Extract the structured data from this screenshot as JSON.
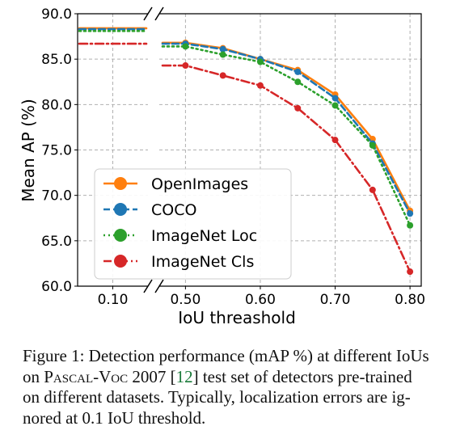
{
  "chart_data": {
    "type": "line",
    "ylabel": "Mean AP (%)",
    "xlabel": "IoU threashold",
    "ylim": [
      60,
      90
    ],
    "yticks": [
      "60.0",
      "65.0",
      "70.0",
      "75.0",
      "80.0",
      "85.0",
      "90.0"
    ],
    "ytick_values": [
      60,
      65,
      70,
      75,
      80,
      85,
      90
    ],
    "x_left_segment": {
      "ticks": [
        "0.10"
      ],
      "tick_values": [
        0.1
      ],
      "xlim": [
        0.05,
        0.15
      ]
    },
    "x_right_segment": {
      "ticks": [
        "0.50",
        "0.60",
        "0.70",
        "0.80"
      ],
      "tick_values": [
        0.5,
        0.6,
        0.7,
        0.8
      ],
      "xlim": [
        0.465,
        0.815
      ]
    },
    "grid": true,
    "broken_x_axis": true,
    "legend_position": "lower-left",
    "series": [
      {
        "name": "OpenImages",
        "color": "#ff7f0e",
        "linestyle": "solid",
        "left": {
          "x": [
            0.1
          ],
          "y": [
            88.4
          ]
        },
        "right": {
          "x": [
            0.5,
            0.55,
            0.6,
            0.65,
            0.7,
            0.75,
            0.8
          ],
          "y": [
            86.8,
            86.2,
            85.0,
            83.8,
            81.1,
            76.2,
            68.3
          ]
        }
      },
      {
        "name": "COCO",
        "color": "#1f77b4",
        "linestyle": "dashed",
        "left": {
          "x": [
            0.1
          ],
          "y": [
            88.3
          ]
        },
        "right": {
          "x": [
            0.5,
            0.55,
            0.6,
            0.65,
            0.7,
            0.75,
            0.8
          ],
          "y": [
            86.7,
            86.1,
            85.0,
            83.6,
            80.7,
            75.7,
            68.0
          ]
        }
      },
      {
        "name": "ImageNet Loc",
        "color": "#2ca02c",
        "linestyle": "dotted",
        "left": {
          "x": [
            0.1
          ],
          "y": [
            88.1
          ]
        },
        "right": {
          "x": [
            0.5,
            0.55,
            0.6,
            0.65,
            0.7,
            0.75,
            0.8
          ],
          "y": [
            86.4,
            85.5,
            84.7,
            82.5,
            79.9,
            75.5,
            66.7
          ]
        }
      },
      {
        "name": "ImageNet Cls",
        "color": "#d62728",
        "linestyle": "dashdot",
        "left": {
          "x": [
            0.1
          ],
          "y": [
            86.7
          ]
        },
        "right": {
          "x": [
            0.5,
            0.55,
            0.6,
            0.65,
            0.7,
            0.75,
            0.8
          ],
          "y": [
            84.3,
            83.2,
            82.1,
            79.6,
            76.1,
            70.6,
            61.6
          ]
        }
      }
    ]
  },
  "caption": {
    "line1_label": "Figure 1: Detection performance (mAP %) at different IoUs",
    "line2_pre": "on ",
    "line2_sc": "Pascal-Voc",
    "line2_mid": " 2007 [",
    "line2_ref": "12",
    "line2_post": "] test set of detectors pre-trained",
    "line3": "on different datasets.  Typically, localization errors are ig-",
    "line4": "nored at 0.1 IoU threshold."
  }
}
